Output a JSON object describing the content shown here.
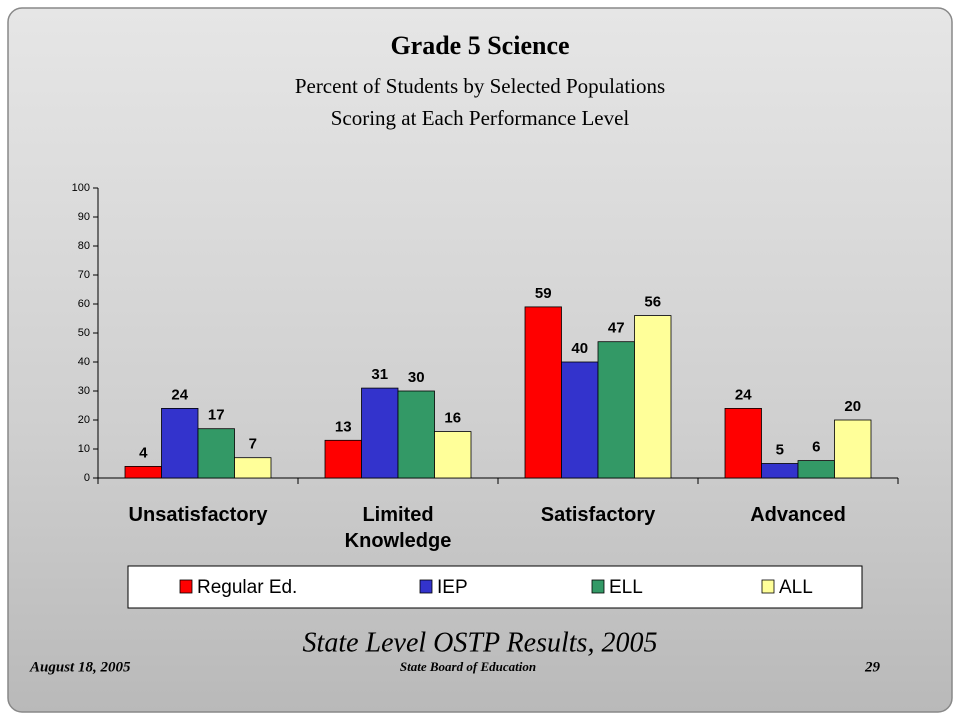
{
  "chart_data": {
    "type": "bar",
    "title": "Grade 5 Science",
    "subtitle": [
      "Percent of Students by Selected Populations",
      "Scoring at Each Performance Level"
    ],
    "categories": [
      "Unsatisfactory",
      "Limited Knowledge",
      "Satisfactory",
      "Advanced"
    ],
    "series": [
      {
        "name": "Regular Ed.",
        "color": "#ff0000",
        "values": [
          4,
          13,
          59,
          24
        ]
      },
      {
        "name": "IEP",
        "color": "#3333cc",
        "values": [
          24,
          31,
          40,
          5
        ]
      },
      {
        "name": "ELL",
        "color": "#339966",
        "values": [
          17,
          30,
          47,
          6
        ]
      },
      {
        "name": "ALL",
        "color": "#ffff99",
        "values": [
          7,
          16,
          56,
          20
        ]
      }
    ],
    "ylim": [
      0,
      100
    ],
    "yticks": [
      0,
      10,
      20,
      30,
      40,
      50,
      60,
      70,
      80,
      90,
      100
    ],
    "grid": false,
    "legend": "bottom"
  },
  "slide": {
    "caption": "State Level OSTP Results, 2005",
    "date": "August 18, 2005",
    "organization": "State Board of Education",
    "page": "29"
  }
}
